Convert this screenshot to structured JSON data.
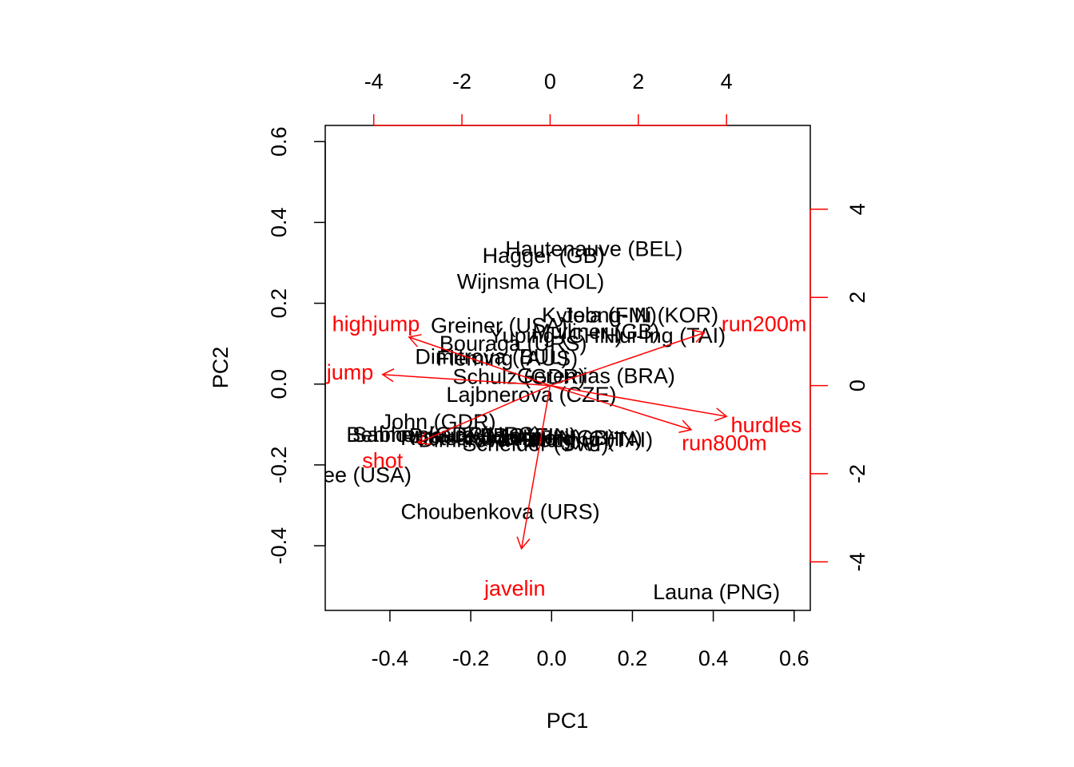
{
  "chart_data": {
    "type": "scatter",
    "subtype": "biplot",
    "xlabel": "PC1",
    "ylabel": "PC2",
    "xlim": [
      -0.56,
      0.64
    ],
    "ylim": [
      -0.56,
      0.64
    ],
    "xticks": [
      -0.4,
      -0.2,
      0.0,
      0.2,
      0.4,
      0.6
    ],
    "xtick_labels": [
      "-0.4",
      "-0.2",
      "0.0",
      "0.2",
      "0.4",
      "0.6"
    ],
    "yticks": [
      -0.4,
      -0.2,
      0.0,
      0.2,
      0.4,
      0.6
    ],
    "ytick_labels": [
      "-0.4",
      "-0.2",
      "0.0",
      "0.2",
      "0.4",
      "0.6"
    ],
    "top_axis": {
      "lim": [
        -5.1,
        5.9
      ],
      "ticks": [
        -4,
        -2,
        0,
        2,
        4
      ],
      "labels": [
        "-4",
        "-2",
        "0",
        "2",
        "4"
      ],
      "color": "#ff0000"
    },
    "right_axis": {
      "lim": [
        -5.1,
        5.9
      ],
      "ticks": [
        -4,
        -2,
        0,
        2,
        4
      ],
      "labels": [
        "-4",
        "-2",
        "0",
        "2",
        "4"
      ],
      "color": "#ff0000"
    },
    "grid": false,
    "points": [
      {
        "label": "Hautenauve (BEL)",
        "x": 0.105,
        "y": 0.335
      },
      {
        "label": "Hagger (GB)",
        "x": -0.02,
        "y": 0.318
      },
      {
        "label": "Wijnsma (HOL)",
        "x": -0.052,
        "y": 0.254
      },
      {
        "label": "Kytola (FIN)",
        "x": 0.118,
        "y": 0.17
      },
      {
        "label": "Jeong-Mi (KOR)",
        "x": 0.22,
        "y": 0.17
      },
      {
        "label": "Greiner (USA)",
        "x": -0.13,
        "y": 0.145
      },
      {
        "label": "Yuping (CHN)",
        "x": 0.01,
        "y": 0.12
      },
      {
        "label": "Mulliner (GB)",
        "x": 0.11,
        "y": 0.13
      },
      {
        "label": "Hui-Ing (TAI)",
        "x": 0.28,
        "y": 0.12
      },
      {
        "label": "Bouraga (URS)",
        "x": -0.095,
        "y": 0.1
      },
      {
        "label": "Dimitrova (BUL)",
        "x": -0.148,
        "y": 0.068
      },
      {
        "label": "Fleming (AUS)",
        "x": -0.11,
        "y": 0.064
      },
      {
        "label": "Schulz (GDR)",
        "x": -0.08,
        "y": 0.018
      },
      {
        "label": "Geremias (BRA)",
        "x": 0.11,
        "y": 0.02
      },
      {
        "label": "Lajbnerova (CZE)",
        "x": -0.05,
        "y": -0.026
      },
      {
        "label": "John (GDR)",
        "x": -0.28,
        "y": -0.093
      },
      {
        "label": "Behmer (GDR)",
        "x": -0.33,
        "y": -0.125
      },
      {
        "label": "Sablovskaite (URS)",
        "x": -0.26,
        "y": -0.125
      },
      {
        "label": "Braun (FRG)",
        "x": -0.2,
        "y": -0.128
      },
      {
        "label": "Ruotsalainen (FIN)",
        "x": -0.15,
        "y": -0.133
      },
      {
        "label": "Dimitrova (BUL)",
        "x": -0.14,
        "y": -0.138
      },
      {
        "label": "Kytola (FIN)",
        "x": -0.08,
        "y": -0.128
      },
      {
        "label": "Mulliner (GB)",
        "x": 0.0,
        "y": -0.133
      },
      {
        "label": "Yuping (CHN)",
        "x": 0.06,
        "y": -0.135
      },
      {
        "label": "Scheider (SWI)",
        "x": -0.04,
        "y": -0.148
      },
      {
        "label": "Hui-Ing (TAI)",
        "x": 0.1,
        "y": -0.138
      },
      {
        "label": "Joyner-Kersee (USA)",
        "x": -0.6,
        "y": -0.225
      },
      {
        "label": "Choubenkova (URS)",
        "x": -0.127,
        "y": -0.316
      },
      {
        "label": "Launa (PNG)",
        "x": 0.408,
        "y": -0.515
      }
    ],
    "variables": [
      {
        "label": "hurdles",
        "x": 4.0,
        "y": -0.7,
        "lx": 4.9,
        "ly": -0.9
      },
      {
        "label": "highjump",
        "x": -3.2,
        "y": 1.1,
        "lx": -3.95,
        "ly": 1.4
      },
      {
        "label": "shot",
        "x": -3.0,
        "y": -1.3,
        "lx": -3.8,
        "ly": -1.7
      },
      {
        "label": "run200m",
        "x": 3.5,
        "y": 1.2,
        "lx": 4.85,
        "ly": 1.4
      },
      {
        "label": "longjump",
        "x": -3.8,
        "y": 0.25,
        "lx": -5.0,
        "ly": 0.3
      },
      {
        "label": "run800m",
        "x": 3.2,
        "y": -1.0,
        "lx": 3.95,
        "ly": -1.3
      },
      {
        "label": "javelin",
        "x": -0.65,
        "y": -3.7,
        "lx": -0.8,
        "ly": -4.6
      }
    ]
  }
}
